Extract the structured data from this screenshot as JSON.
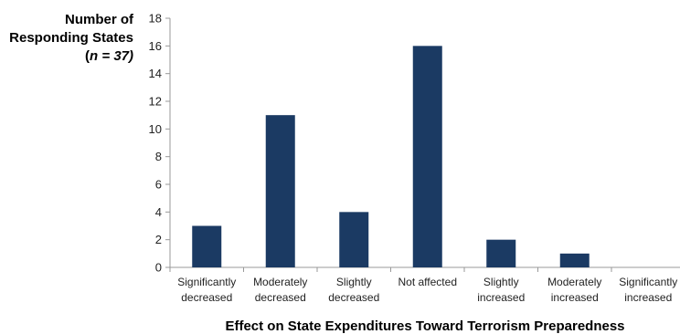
{
  "chart_data": {
    "type": "bar",
    "ylabel_lines": [
      "Number of",
      "Responding States",
      "(n = 37)"
    ],
    "xlabel": "Effect on State Expenditures Toward Terrorism Preparedness",
    "categories": [
      [
        "Significantly",
        "decreased"
      ],
      [
        "Moderately",
        "decreased"
      ],
      [
        "Slightly",
        "decreased"
      ],
      [
        "Not affected"
      ],
      [
        "Slightly",
        "increased"
      ],
      [
        "Moderately",
        "increased"
      ],
      [
        "Significantly",
        "increased"
      ]
    ],
    "values": [
      3,
      11,
      4,
      16,
      2,
      1,
      0
    ],
    "ylim": [
      0,
      18
    ],
    "yticks": [
      0,
      2,
      4,
      6,
      8,
      10,
      12,
      14,
      16,
      18
    ],
    "bar_color": "#1b3a63",
    "grid": false
  }
}
